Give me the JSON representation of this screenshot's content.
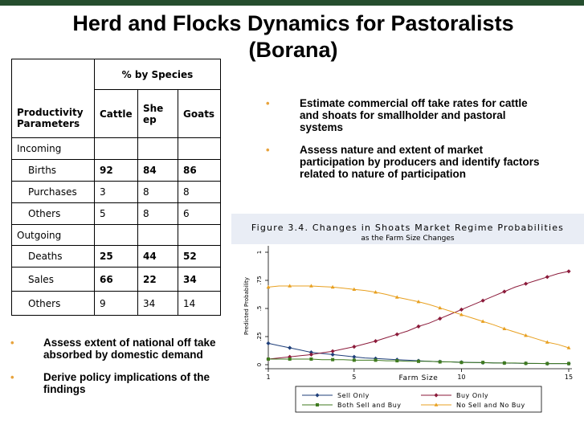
{
  "title_line1": "Herd and Flocks Dynamics for Pastoralists",
  "title_line2": "(Borana)",
  "table": {
    "species_header": "% by Species",
    "param_header": "Productivity Parameters",
    "col_cattle": "Cattle",
    "col_sheep": "Sheep",
    "col_goats": "Goats",
    "rows": [
      {
        "label": "Incoming",
        "cattle": "",
        "sheep": "",
        "goats": ""
      },
      {
        "label": "Births",
        "cattle": "92",
        "sheep": "84",
        "goats": "86"
      },
      {
        "label": "Purchases",
        "cattle": "3",
        "sheep": "8",
        "goats": "8"
      },
      {
        "label": "Others",
        "cattle": "5",
        "sheep": "8",
        "goats": "6"
      },
      {
        "label": "Outgoing",
        "cattle": "",
        "sheep": "",
        "goats": ""
      },
      {
        "label": "Deaths",
        "cattle": "25",
        "sheep": "44",
        "goats": "52"
      },
      {
        "label": "Sales",
        "cattle": "66",
        "sheep": "22",
        "goats": "34"
      },
      {
        "label": "Others",
        "cattle": "9",
        "sheep": "34",
        "goats": "14"
      }
    ]
  },
  "bullets_right": [
    "Estimate commercial off take rates for cattle and shoats for smallholder and pastoral systems",
    "Assess nature and extent of market participation by producers and identify factors related to nature of participation"
  ],
  "bullets_left": [
    "Assess extent of national off take absorbed by domestic demand",
    "Derive policy implications of the findings"
  ],
  "chart_data": {
    "type": "line",
    "title": "Figure 3.4. Changes in Shoats Market Regime Probabilities",
    "subtitle": "as the Farm Size Changes",
    "xlabel": "Farm Size",
    "ylabel": "Predicted Probability",
    "xlim": [
      1,
      15
    ],
    "ylim": [
      0,
      1
    ],
    "xticks": [
      1,
      5,
      10,
      15
    ],
    "yticks": [
      "0",
      ".25",
      ".5",
      ".75",
      "1"
    ],
    "x": [
      1,
      1.5,
      2,
      2.5,
      3,
      3.5,
      4,
      4.5,
      5,
      5.5,
      6,
      6.5,
      7,
      7.5,
      8,
      8.5,
      9,
      9.5,
      10,
      10.5,
      11,
      11.5,
      12,
      12.5,
      13,
      13.5,
      14,
      14.5,
      15
    ],
    "series": [
      {
        "name": "Sell Only",
        "color": "#1f3f7a",
        "marker": "diamond",
        "values": [
          0.19,
          0.17,
          0.15,
          0.13,
          0.11,
          0.1,
          0.09,
          0.08,
          0.07,
          0.06,
          0.055,
          0.05,
          0.045,
          0.04,
          0.035,
          0.03,
          0.027,
          0.025,
          0.022,
          0.02,
          0.018,
          0.016,
          0.015,
          0.013,
          0.012,
          0.011,
          0.01,
          0.01,
          0.01
        ]
      },
      {
        "name": "Buy Only",
        "color": "#8b1a3a",
        "marker": "diamond",
        "values": [
          0.05,
          0.06,
          0.07,
          0.08,
          0.09,
          0.105,
          0.12,
          0.14,
          0.16,
          0.185,
          0.21,
          0.24,
          0.27,
          0.3,
          0.34,
          0.37,
          0.41,
          0.45,
          0.49,
          0.53,
          0.57,
          0.61,
          0.65,
          0.69,
          0.72,
          0.75,
          0.78,
          0.81,
          0.83
        ]
      },
      {
        "name": "Both Sell and Buy",
        "color": "#3f7a1f",
        "marker": "square",
        "values": [
          0.05,
          0.05,
          0.05,
          0.05,
          0.05,
          0.045,
          0.045,
          0.045,
          0.04,
          0.04,
          0.04,
          0.035,
          0.035,
          0.03,
          0.03,
          0.03,
          0.025,
          0.025,
          0.02,
          0.02,
          0.02,
          0.015,
          0.015,
          0.015,
          0.012,
          0.012,
          0.01,
          0.01,
          0.01
        ]
      },
      {
        "name": "No Sell and No Buy",
        "color": "#e8a020",
        "marker": "triangle",
        "values": [
          0.69,
          0.7,
          0.7,
          0.7,
          0.7,
          0.695,
          0.69,
          0.68,
          0.67,
          0.66,
          0.645,
          0.625,
          0.6,
          0.58,
          0.56,
          0.535,
          0.505,
          0.475,
          0.445,
          0.415,
          0.385,
          0.355,
          0.32,
          0.29,
          0.26,
          0.23,
          0.2,
          0.18,
          0.15
        ]
      }
    ],
    "legend_position": "bottom"
  }
}
